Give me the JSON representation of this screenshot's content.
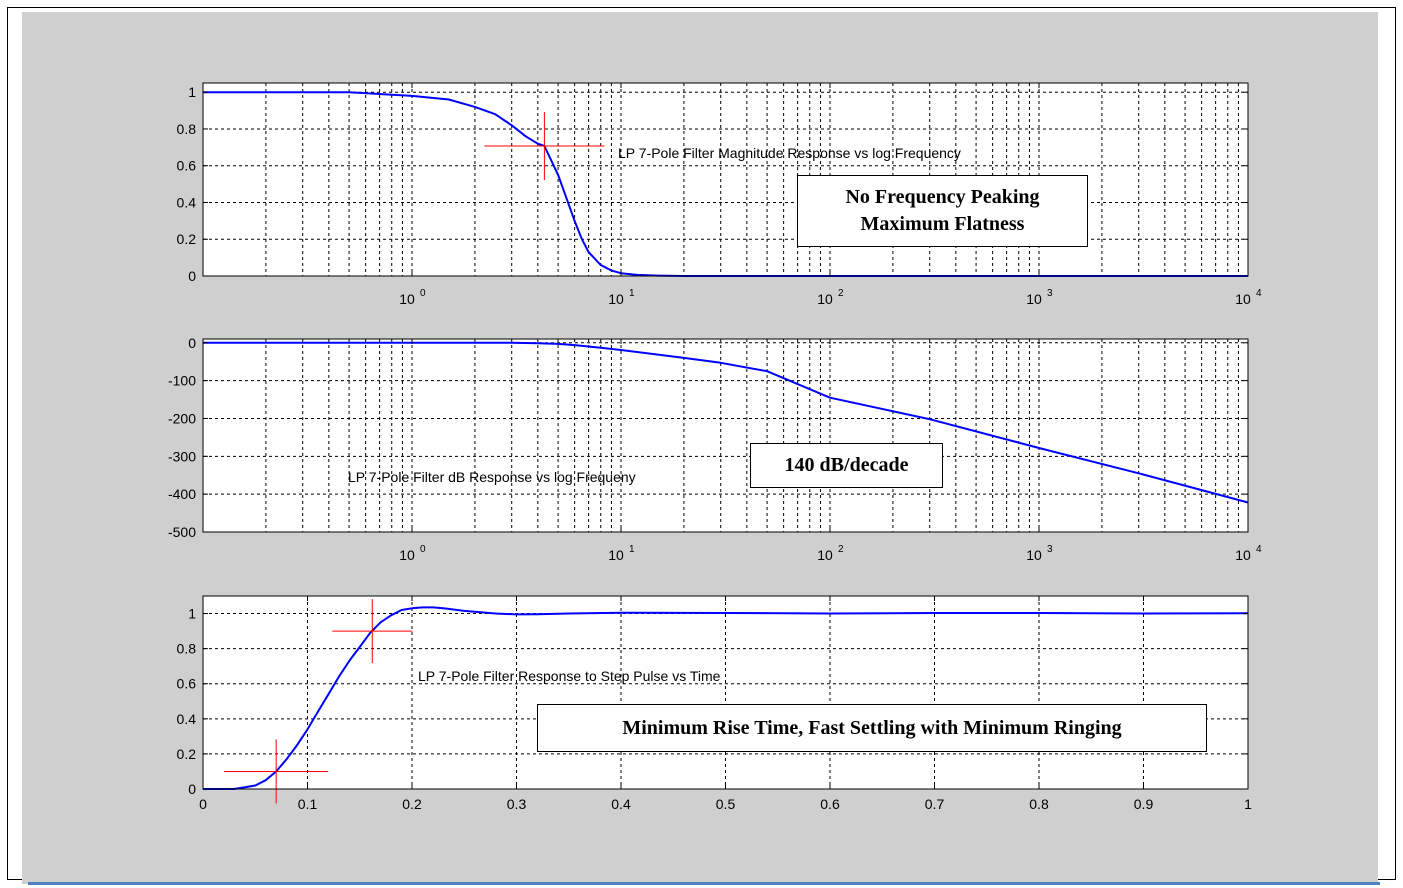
{
  "colors": {
    "figure_bg": "#cfcfcf",
    "axes_bg": "#ffffff",
    "curve": "#0000ff",
    "marker": "#ff0000",
    "grid": "#000000",
    "rule": "#4f81bd"
  },
  "chart_data": [
    {
      "type": "line",
      "xscale": "log",
      "xlim": [
        0.1,
        10000
      ],
      "ylim": [
        0,
        1.05
      ],
      "xticks": [
        1,
        10,
        100,
        1000,
        10000
      ],
      "xtick_labels": [
        {
          "base": "10",
          "exp": "0"
        },
        {
          "base": "10",
          "exp": "1"
        },
        {
          "base": "10",
          "exp": "2"
        },
        {
          "base": "10",
          "exp": "3"
        },
        {
          "base": "10",
          "exp": "4"
        }
      ],
      "yticks": [
        0,
        0.2,
        0.4,
        0.6,
        0.8,
        1
      ],
      "ytick_labels": [
        "0",
        "0.2",
        "0.4",
        "0.6",
        "0.8",
        "1"
      ],
      "grid": true,
      "annotation": "LP 7-Pole Filter Magnitude Response vs log Frequency",
      "callout": [
        "No Frequency Peaking",
        "Maximum Flatness"
      ],
      "marker": {
        "x": 4.3,
        "y": 0.707
      },
      "series": [
        {
          "x": [
            0.1,
            0.3,
            0.5,
            1,
            1.5,
            2,
            2.5,
            3,
            3.5,
            4,
            4.3,
            5,
            5.5,
            6,
            6.5,
            7,
            8,
            9,
            10,
            12,
            15,
            20,
            50,
            100,
            1000,
            10000
          ],
          "values": [
            1,
            1,
            1,
            0.98,
            0.96,
            0.92,
            0.88,
            0.82,
            0.76,
            0.72,
            0.707,
            0.55,
            0.42,
            0.3,
            0.2,
            0.13,
            0.06,
            0.03,
            0.015,
            0.006,
            0.002,
            0,
            0,
            0,
            0,
            0
          ]
        }
      ]
    },
    {
      "type": "line",
      "xscale": "log",
      "xlim": [
        0.1,
        10000
      ],
      "ylim": [
        -500,
        10
      ],
      "xticks": [
        1,
        10,
        100,
        1000,
        10000
      ],
      "xtick_labels": [
        {
          "base": "10",
          "exp": "0"
        },
        {
          "base": "10",
          "exp": "1"
        },
        {
          "base": "10",
          "exp": "2"
        },
        {
          "base": "10",
          "exp": "3"
        },
        {
          "base": "10",
          "exp": "4"
        }
      ],
      "yticks": [
        0,
        -100,
        -200,
        -300,
        -400,
        -500
      ],
      "ytick_labels": [
        "0",
        "-100",
        "-200",
        "-300",
        "-400",
        "-500"
      ],
      "grid": true,
      "annotation": "LP 7-Pole Filter dB Response vs log Frequeny",
      "callout": [
        "140 dB/decade"
      ],
      "series": [
        {
          "x": [
            0.1,
            1,
            3,
            4,
            5,
            6,
            8,
            10,
            20,
            30,
            50,
            100,
            300,
            1000,
            3000,
            10000
          ],
          "values": [
            0,
            0,
            0,
            -1,
            -3,
            -6,
            -13,
            -19,
            -40,
            -53,
            -75,
            -145,
            -202,
            -278,
            -345,
            -422
          ]
        }
      ]
    },
    {
      "type": "line",
      "xscale": "linear",
      "xlim": [
        0,
        1
      ],
      "ylim": [
        0,
        1.1
      ],
      "xticks": [
        0,
        0.1,
        0.2,
        0.3,
        0.4,
        0.5,
        0.6,
        0.7,
        0.8,
        0.9,
        1
      ],
      "xtick_labels": [
        "0",
        "0.1",
        "0.2",
        "0.3",
        "0.4",
        "0.5",
        "0.6",
        "0.7",
        "0.8",
        "0.9",
        "1"
      ],
      "yticks": [
        0,
        0.2,
        0.4,
        0.6,
        0.8,
        1
      ],
      "ytick_labels": [
        "0",
        "0.2",
        "0.4",
        "0.6",
        "0.8",
        "1"
      ],
      "grid": true,
      "annotation": "LP 7-Pole Filter Response to Step Pulse vs Time",
      "callout": [
        "Minimum Rise Time, Fast Settling with Minimum Ringing"
      ],
      "markers": [
        {
          "x": 0.07,
          "y": 0.1
        },
        {
          "x": 0.162,
          "y": 0.9
        }
      ],
      "series": [
        {
          "x": [
            0,
            0.03,
            0.05,
            0.06,
            0.07,
            0.08,
            0.09,
            0.1,
            0.11,
            0.12,
            0.13,
            0.14,
            0.15,
            0.16,
            0.17,
            0.18,
            0.19,
            0.2,
            0.21,
            0.22,
            0.23,
            0.25,
            0.28,
            0.3,
            0.32,
            0.35,
            0.4,
            0.5,
            0.6,
            0.7,
            0.8,
            0.9,
            1
          ],
          "values": [
            0,
            0,
            0.02,
            0.05,
            0.1,
            0.17,
            0.25,
            0.34,
            0.44,
            0.54,
            0.64,
            0.73,
            0.81,
            0.89,
            0.95,
            0.99,
            1.02,
            1.03,
            1.035,
            1.035,
            1.03,
            1.015,
            1.0,
            0.995,
            0.996,
            1.0,
            1.005,
            1.003,
            1.0,
            1.003,
            1.003,
            1.0,
            1.002
          ]
        }
      ]
    }
  ]
}
